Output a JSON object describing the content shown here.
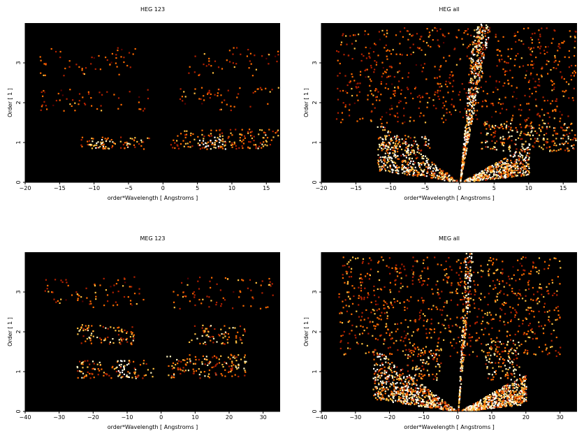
{
  "chart_data": [
    {
      "type": "heatmap",
      "title": "HEG 123",
      "xlabel": "order*Wavelength [ Angstroms ]",
      "ylabel": "Order [ 1 ]",
      "xlim": [
        -20,
        17
      ],
      "ylim": [
        0,
        4
      ],
      "xticks": [
        -20,
        -15,
        -10,
        -5,
        0,
        5,
        10,
        15
      ],
      "yticks": [
        0,
        1,
        2,
        3
      ],
      "background": "#000000",
      "colormap": [
        "#5a0000",
        "#b22000",
        "#ff6a00",
        "#ffc040",
        "#fff4c0",
        "#ffffff"
      ],
      "regions": [
        {
          "order": 1,
          "x": [
            -12,
            -2
          ],
          "y": [
            0.85,
            1.15
          ],
          "density": 0.55,
          "intensity": 0.55
        },
        {
          "order": 1,
          "x": [
            -11,
            -8
          ],
          "y": [
            0.85,
            1.1
          ],
          "density": 0.6,
          "intensity": 0.75
        },
        {
          "order": 1,
          "x": [
            1,
            17
          ],
          "y": [
            0.85,
            1.35
          ],
          "density": 0.45,
          "intensity": 0.5
        },
        {
          "order": 1,
          "x": [
            5,
            9
          ],
          "y": [
            0.85,
            1.15
          ],
          "density": 0.8,
          "intensity": 0.9
        },
        {
          "order": 2,
          "x": [
            -18,
            -2
          ],
          "y": [
            1.8,
            2.35
          ],
          "density": 0.15,
          "intensity": 0.4
        },
        {
          "order": 2,
          "x": [
            2,
            17
          ],
          "y": [
            1.8,
            2.4
          ],
          "density": 0.15,
          "intensity": 0.4
        },
        {
          "order": 3,
          "x": [
            -18,
            -3
          ],
          "y": [
            2.7,
            3.4
          ],
          "density": 0.12,
          "intensity": 0.4
        },
        {
          "order": 3,
          "x": [
            3,
            17
          ],
          "y": [
            2.7,
            3.4
          ],
          "density": 0.12,
          "intensity": 0.4
        }
      ]
    },
    {
      "type": "heatmap",
      "title": "HEG all",
      "xlabel": "order*Wavelength [ Angstroms ]",
      "ylabel": "Order [ 1 ]",
      "xlim": [
        -20,
        17
      ],
      "ylim": [
        0,
        4
      ],
      "xticks": [
        -20,
        -15,
        -10,
        -5,
        0,
        5,
        10,
        15
      ],
      "yticks": [
        0,
        1,
        2,
        3
      ],
      "background": "#000000",
      "colormap": [
        "#5a0000",
        "#b22000",
        "#ff6a00",
        "#ffc040",
        "#fff4c0",
        "#ffffff"
      ],
      "regions": [
        {
          "order": 0,
          "x": [
            -12,
            10
          ],
          "y": [
            0,
            1.5
          ],
          "density": 0.7,
          "intensity": 0.75,
          "shape": "fan"
        },
        {
          "order": 0,
          "x": [
            1,
            5
          ],
          "y": [
            0,
            4
          ],
          "density": 0.8,
          "intensity": 0.8,
          "shape": "spike"
        },
        {
          "order": 1,
          "x": [
            -12,
            -4
          ],
          "y": [
            0.8,
            1.2
          ],
          "density": 0.7,
          "intensity": 0.7
        },
        {
          "order": 1,
          "x": [
            3,
            17
          ],
          "y": [
            0.8,
            1.5
          ],
          "density": 0.6,
          "intensity": 0.6
        },
        {
          "order": 2,
          "x": [
            -18,
            17
          ],
          "y": [
            1.5,
            3.9
          ],
          "density": 0.2,
          "intensity": 0.4
        }
      ]
    },
    {
      "type": "heatmap",
      "title": "MEG 123",
      "xlabel": "order*Wavelength [ Angstroms ]",
      "ylabel": "Order [ 1 ]",
      "xlim": [
        -40,
        35
      ],
      "ylim": [
        0,
        4
      ],
      "xticks": [
        -40,
        -30,
        -20,
        -10,
        0,
        10,
        20,
        30
      ],
      "yticks": [
        0,
        1,
        2,
        3
      ],
      "background": "#000000",
      "colormap": [
        "#5a0000",
        "#b22000",
        "#ff6a00",
        "#ffc040",
        "#fff4c0",
        "#ffffff"
      ],
      "regions": [
        {
          "order": 1,
          "x": [
            -25,
            -2
          ],
          "y": [
            0.85,
            1.3
          ],
          "density": 0.45,
          "intensity": 0.55
        },
        {
          "order": 1,
          "x": [
            -13,
            -9
          ],
          "y": [
            0.85,
            1.3
          ],
          "density": 0.8,
          "intensity": 0.9
        },
        {
          "order": 1,
          "x": [
            1,
            25
          ],
          "y": [
            0.85,
            1.45
          ],
          "density": 0.5,
          "intensity": 0.55
        },
        {
          "order": 2,
          "x": [
            -25,
            -8
          ],
          "y": [
            1.7,
            2.2
          ],
          "density": 0.5,
          "intensity": 0.55
        },
        {
          "order": 2,
          "x": [
            8,
            25
          ],
          "y": [
            1.7,
            2.2
          ],
          "density": 0.4,
          "intensity": 0.55
        },
        {
          "order": 3,
          "x": [
            -35,
            -5
          ],
          "y": [
            2.6,
            3.4
          ],
          "density": 0.15,
          "intensity": 0.4
        },
        {
          "order": 3,
          "x": [
            3,
            33
          ],
          "y": [
            2.6,
            3.4
          ],
          "density": 0.15,
          "intensity": 0.4
        }
      ]
    },
    {
      "type": "heatmap",
      "title": "MEG all",
      "xlabel": "order*Wavelength [ Angstroms ]",
      "ylabel": "Order [ 1 ]",
      "xlim": [
        -40,
        35
      ],
      "ylim": [
        0,
        4
      ],
      "xticks": [
        -40,
        -30,
        -20,
        -10,
        0,
        10,
        20,
        30
      ],
      "yticks": [
        0,
        1,
        2,
        3
      ],
      "background": "#000000",
      "colormap": [
        "#5a0000",
        "#b22000",
        "#ff6a00",
        "#ffc040",
        "#fff4c0",
        "#ffffff"
      ],
      "regions": [
        {
          "order": 0,
          "x": [
            -25,
            20
          ],
          "y": [
            0,
            2.2
          ],
          "density": 0.7,
          "intensity": 0.75,
          "shape": "fan"
        },
        {
          "order": 0,
          "x": [
            1,
            5
          ],
          "y": [
            0,
            4
          ],
          "density": 0.8,
          "intensity": 0.8,
          "shape": "spike"
        },
        {
          "order": 1,
          "x": [
            -15,
            -5
          ],
          "y": [
            0.8,
            1.6
          ],
          "density": 0.6,
          "intensity": 0.65
        },
        {
          "order": 1,
          "x": [
            8,
            18
          ],
          "y": [
            0.8,
            1.8
          ],
          "density": 0.6,
          "intensity": 0.65
        },
        {
          "order": 2,
          "x": [
            -35,
            30
          ],
          "y": [
            1.4,
            3.9
          ],
          "density": 0.25,
          "intensity": 0.45
        }
      ]
    }
  ]
}
